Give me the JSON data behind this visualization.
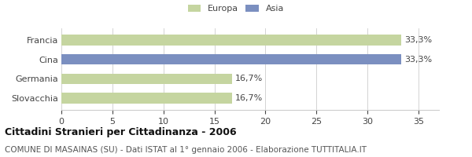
{
  "categories": [
    "Francia",
    "Cina",
    "Germania",
    "Slovacchia"
  ],
  "values": [
    33.3,
    33.3,
    16.7,
    16.7
  ],
  "bar_colors": [
    "#c5d5a0",
    "#7b8fc0",
    "#c5d5a0",
    "#c5d5a0"
  ],
  "value_labels": [
    "33,3%",
    "33,3%",
    "16,7%",
    "16,7%"
  ],
  "xlim": [
    0,
    37
  ],
  "xticks": [
    0,
    5,
    10,
    15,
    20,
    25,
    30,
    35
  ],
  "legend_labels": [
    "Europa",
    "Asia"
  ],
  "legend_colors": [
    "#c5d5a0",
    "#7b8fc0"
  ],
  "title_bold": "Cittadini Stranieri per Cittadinanza - 2006",
  "subtitle": "COMUNE DI MASAINAS (SU) - Dati ISTAT al 1° gennaio 2006 - Elaborazione TUTTITALIA.IT",
  "bar_height": 0.55,
  "background_color": "#ffffff",
  "grid_color": "#cccccc",
  "text_color": "#444444",
  "label_fontsize": 8,
  "value_fontsize": 8,
  "title_fontsize": 9,
  "subtitle_fontsize": 7.5
}
